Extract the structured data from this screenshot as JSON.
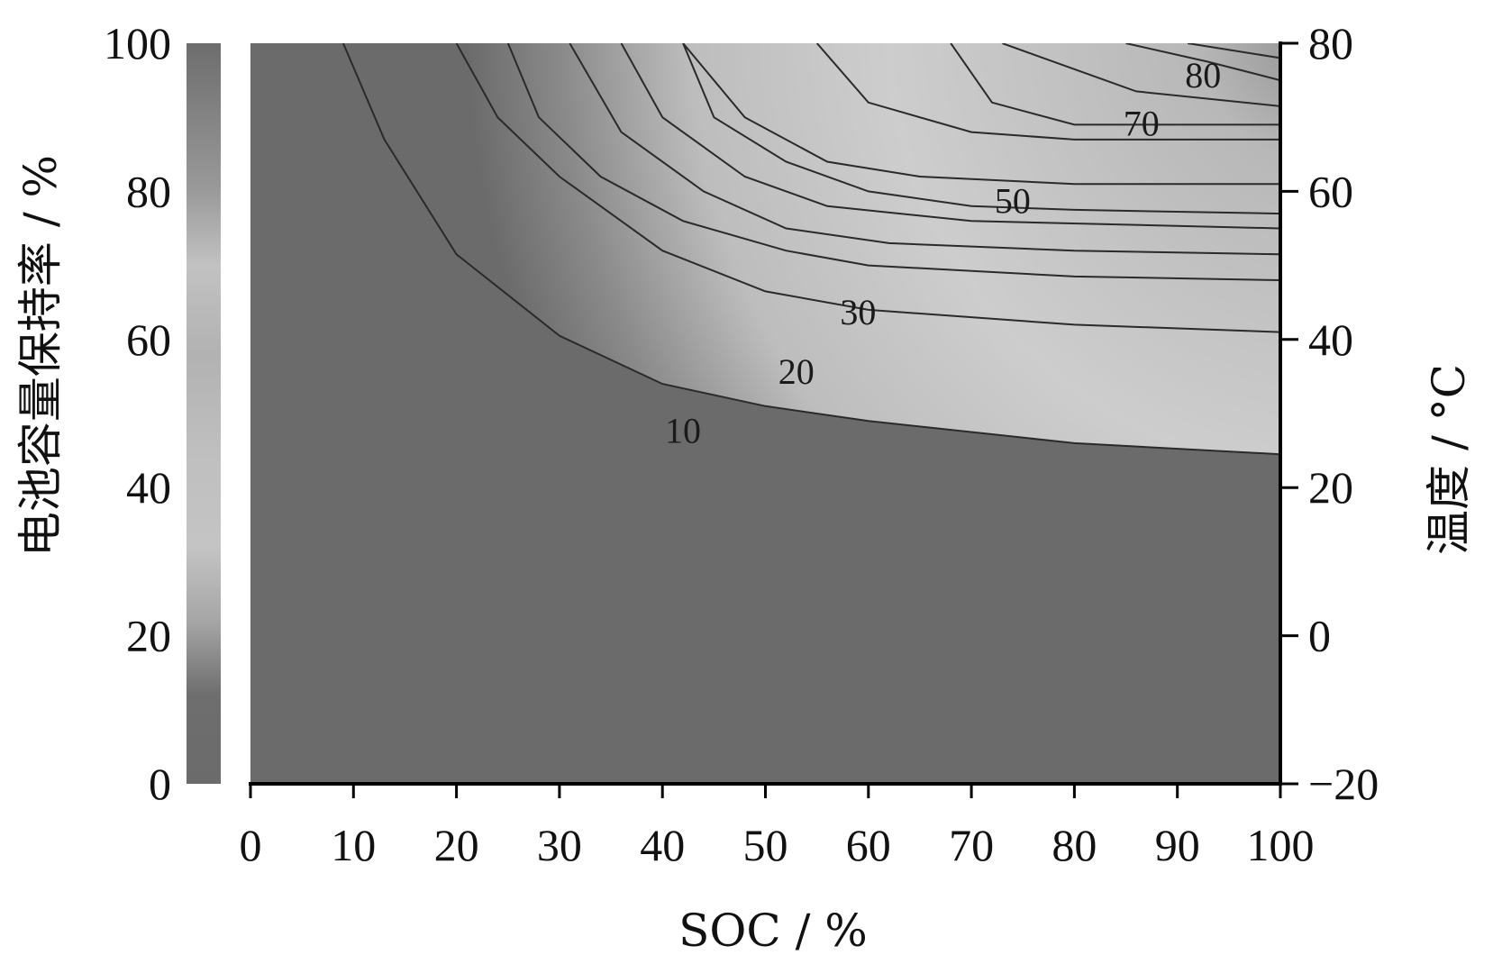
{
  "chart_data": {
    "type": "heatmap",
    "title": "",
    "xlabel": "SOC / %",
    "ylabel_left": "电池容量保持率 / %",
    "ylabel_right": "温度 / °C",
    "x_range": [
      0,
      100
    ],
    "x_ticks": [
      "0",
      "10",
      "20",
      "30",
      "40",
      "50",
      "60",
      "70",
      "80",
      "90",
      "100"
    ],
    "left_range": [
      0,
      100
    ],
    "left_ticks": [
      "0",
      "20",
      "40",
      "60",
      "80",
      "100"
    ],
    "right_range": [
      -20,
      80
    ],
    "right_ticks": [
      "−20",
      "0",
      "20",
      "40",
      "60",
      "80"
    ],
    "grid": false,
    "colorbar_stops": [
      {
        "value": 0,
        "color": "#6b6b6b"
      },
      {
        "value": 12,
        "color": "#6e6e6e"
      },
      {
        "value": 22,
        "color": "#a6a6a6"
      },
      {
        "value": 32,
        "color": "#c4c4c4"
      },
      {
        "value": 45,
        "color": "#bfbfbf"
      },
      {
        "value": 58,
        "color": "#b2b2b2"
      },
      {
        "value": 70,
        "color": "#c2c2c2"
      },
      {
        "value": 80,
        "color": "#9a9a9a"
      },
      {
        "value": 100,
        "color": "#6d6d6d"
      }
    ],
    "contours": [
      {
        "label": "10",
        "label_at": [
          42,
          27.5
        ],
        "points": [
          [
            9,
            80
          ],
          [
            13,
            67
          ],
          [
            20,
            51.5
          ],
          [
            30,
            40.5
          ],
          [
            40,
            34
          ],
          [
            50,
            31
          ],
          [
            60,
            29
          ],
          [
            80,
            26
          ],
          [
            100,
            24.5
          ]
        ]
      },
      {
        "label": "20",
        "label_at": [
          53,
          35.5
        ],
        "points": [
          [
            20,
            80
          ],
          [
            24,
            70
          ],
          [
            30,
            62
          ],
          [
            40,
            52
          ],
          [
            50,
            46.5
          ],
          [
            60,
            44
          ],
          [
            80,
            42
          ],
          [
            100,
            41
          ]
        ]
      },
      {
        "label": "30",
        "label_at": [
          59,
          43.5
        ],
        "points": [
          [
            31,
            80
          ],
          [
            36,
            68
          ],
          [
            44,
            60
          ],
          [
            52,
            55
          ],
          [
            62,
            53
          ],
          [
            80,
            52
          ],
          [
            100,
            51.5
          ]
        ]
      },
      {
        "label": "50",
        "label_at": [
          74,
          58.5
        ],
        "points": [
          [
            42,
            80
          ],
          [
            45,
            70
          ],
          [
            52,
            64
          ],
          [
            60,
            60
          ],
          [
            70,
            58
          ],
          [
            80,
            57.5
          ],
          [
            100,
            57
          ]
        ]
      },
      {
        "label": "70",
        "label_at": [
          86.5,
          69
        ],
        "points": [
          [
            55,
            80
          ],
          [
            60,
            72
          ],
          [
            70,
            68
          ],
          [
            80,
            67
          ],
          [
            100,
            67
          ]
        ]
      },
      {
        "label": "80",
        "label_at": [
          92.5,
          75.5
        ],
        "points": [
          [
            73,
            80
          ],
          [
            80,
            76.5
          ],
          [
            86,
            73.5
          ],
          [
            100,
            71.5
          ]
        ]
      }
    ],
    "extra_lines": [
      [
        [
          68,
          80
        ],
        [
          72,
          72
        ],
        [
          80,
          69
        ],
        [
          100,
          69
        ]
      ],
      [
        [
          85,
          80
        ],
        [
          93,
          77.5
        ],
        [
          100,
          75
        ]
      ],
      [
        [
          42,
          80
        ],
        [
          48,
          70
        ],
        [
          56,
          64
        ],
        [
          65,
          62
        ],
        [
          80,
          61
        ],
        [
          100,
          61
        ]
      ],
      [
        [
          36,
          80
        ],
        [
          40,
          70
        ],
        [
          48,
          62
        ],
        [
          56,
          58
        ],
        [
          70,
          56
        ],
        [
          100,
          55
        ]
      ],
      [
        [
          25,
          80
        ],
        [
          28,
          70
        ],
        [
          34,
          62
        ],
        [
          42,
          56
        ],
        [
          52,
          52
        ],
        [
          60,
          50
        ],
        [
          80,
          48.5
        ],
        [
          100,
          48
        ]
      ],
      [
        [
          91,
          80
        ],
        [
          100,
          78
        ]
      ]
    ]
  }
}
